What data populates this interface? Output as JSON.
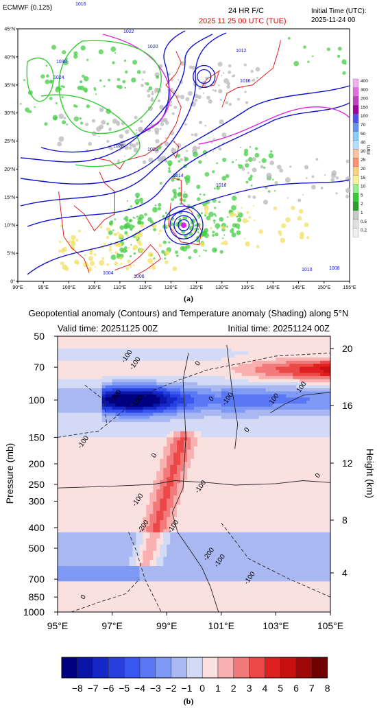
{
  "panel_a": {
    "caption": "(a)",
    "model": "ECMWF (0.125)",
    "forecast_label": "24 HR  F/C",
    "valid_label": "2025 11 25  00 UTC (TUE)",
    "init_label_title": "Initial Time (UTC):",
    "init_label_value": "2025-11-24 00",
    "colorbar_unit": "mm",
    "colorbar_levels": [
      "400",
      "300",
      "200",
      "150",
      "100",
      "70",
      "50",
      "40",
      "30",
      "25",
      "20",
      "15",
      "10",
      "5",
      "2",
      "1",
      "0.5",
      "0.2"
    ],
    "colorbar_colors": [
      "#f0b0f0",
      "#e070e0",
      "#c040c0",
      "#a000a0",
      "#5050f0",
      "#6495ed",
      "#87cefa",
      "#b0e0ff",
      "#ffc0a0",
      "#ff9070",
      "#ffd080",
      "#f5f090",
      "#90ee90",
      "#32cd32",
      "#2ca02c",
      "#c8c8c8",
      "#e0e0e0",
      "#f0f0f0"
    ],
    "lat_ticks": [
      "45°N",
      "40°N",
      "35°N",
      "30°N",
      "25°N",
      "20°N",
      "15°N",
      "10°N",
      "5°N",
      "0°"
    ],
    "lon_ticks": [
      "90°E",
      "95°E",
      "100°E",
      "105°E",
      "110°E",
      "115°E",
      "120°E",
      "125°E",
      "130°E",
      "135°E",
      "140°E",
      "145°E",
      "150°E",
      "155°E"
    ],
    "isobar_labels": [
      "1016",
      "1022",
      "1020",
      "1024",
      "1012",
      "1016",
      "1026",
      "1028",
      "1030",
      "1018",
      "1008",
      "1010",
      "1006",
      "1004",
      "1014"
    ],
    "colors": {
      "isobar": "#1010d0",
      "isobar_alt": "#e020e0",
      "coast": "#e02020",
      "precip_green": "#44cc44",
      "precip_grey": "#b8b8b8",
      "precip_yellow": "#f0e060",
      "isobar_green": "#33cc33"
    }
  },
  "panel_b": {
    "caption": "(b)",
    "title": "Geopotential anomaly (Contours) and Temperature anomaly (Shading) along 5°N",
    "valid_time": "Valid time: 20251125 00Z",
    "initial_time": "Initial time: 20251124 00Z",
    "colorbar_ticks": [
      "−8",
      "−7",
      "−6",
      "−5",
      "−4",
      "−3",
      "−2",
      "−1",
      "0",
      "1",
      "2",
      "3",
      "4",
      "5",
      "6",
      "7",
      "8"
    ]
  },
  "chart_data": [
    {
      "type": "heatmap",
      "title": "Geopotential anomaly (Contours) and Temperature anomaly (Shading) along 5°N",
      "xlabel": "",
      "ylabel": "Pressure (mb)",
      "y2label": "Height (km)",
      "x_ticks": [
        "95°E",
        "97°E",
        "99°E",
        "101°E",
        "103°E",
        "105°E"
      ],
      "xlim": [
        95,
        105
      ],
      "y_ticks": [
        50,
        70,
        100,
        150,
        200,
        250,
        300,
        400,
        500,
        700,
        850,
        1000
      ],
      "ylim": [
        1000,
        50
      ],
      "y_scale": "log",
      "y2_ticks": [
        20,
        16,
        12,
        8,
        4
      ],
      "contour_labels": [
        "-100",
        "-100",
        "-200",
        "100",
        "-100",
        "0",
        "0",
        "0",
        "-100",
        "100",
        "100",
        "0",
        "0",
        "-100",
        "-100",
        "-200",
        "-100",
        "-200",
        "-100",
        "-100",
        "0"
      ],
      "shading_levels": [
        -8,
        -7,
        -6,
        -5,
        -4,
        -3,
        -2,
        -1,
        0,
        1,
        2,
        3,
        4,
        5,
        6,
        7,
        8
      ],
      "shading_colors": [
        "#000080",
        "#0a14a8",
        "#1428c8",
        "#2840e0",
        "#3a58f0",
        "#5a78f5",
        "#7f9af5",
        "#a9b8f0",
        "#d2daf5",
        "#fbe0e0",
        "#f8b0b0",
        "#f27a7a",
        "#ec4848",
        "#e02020",
        "#c81010",
        "#a00808",
        "#700000"
      ],
      "features": [
        {
          "name": "negative core",
          "lon_range": [
            97,
            100
          ],
          "pressure": 100,
          "value_min": -8
        },
        {
          "name": "positive band",
          "lon_range": [
            102,
            105
          ],
          "pressure": 70,
          "value_max": 7
        },
        {
          "name": "positive tilted band",
          "lon_range": [
            98,
            100
          ],
          "pressure_range": [
            200,
            500
          ],
          "value_max": 3
        }
      ]
    }
  ]
}
